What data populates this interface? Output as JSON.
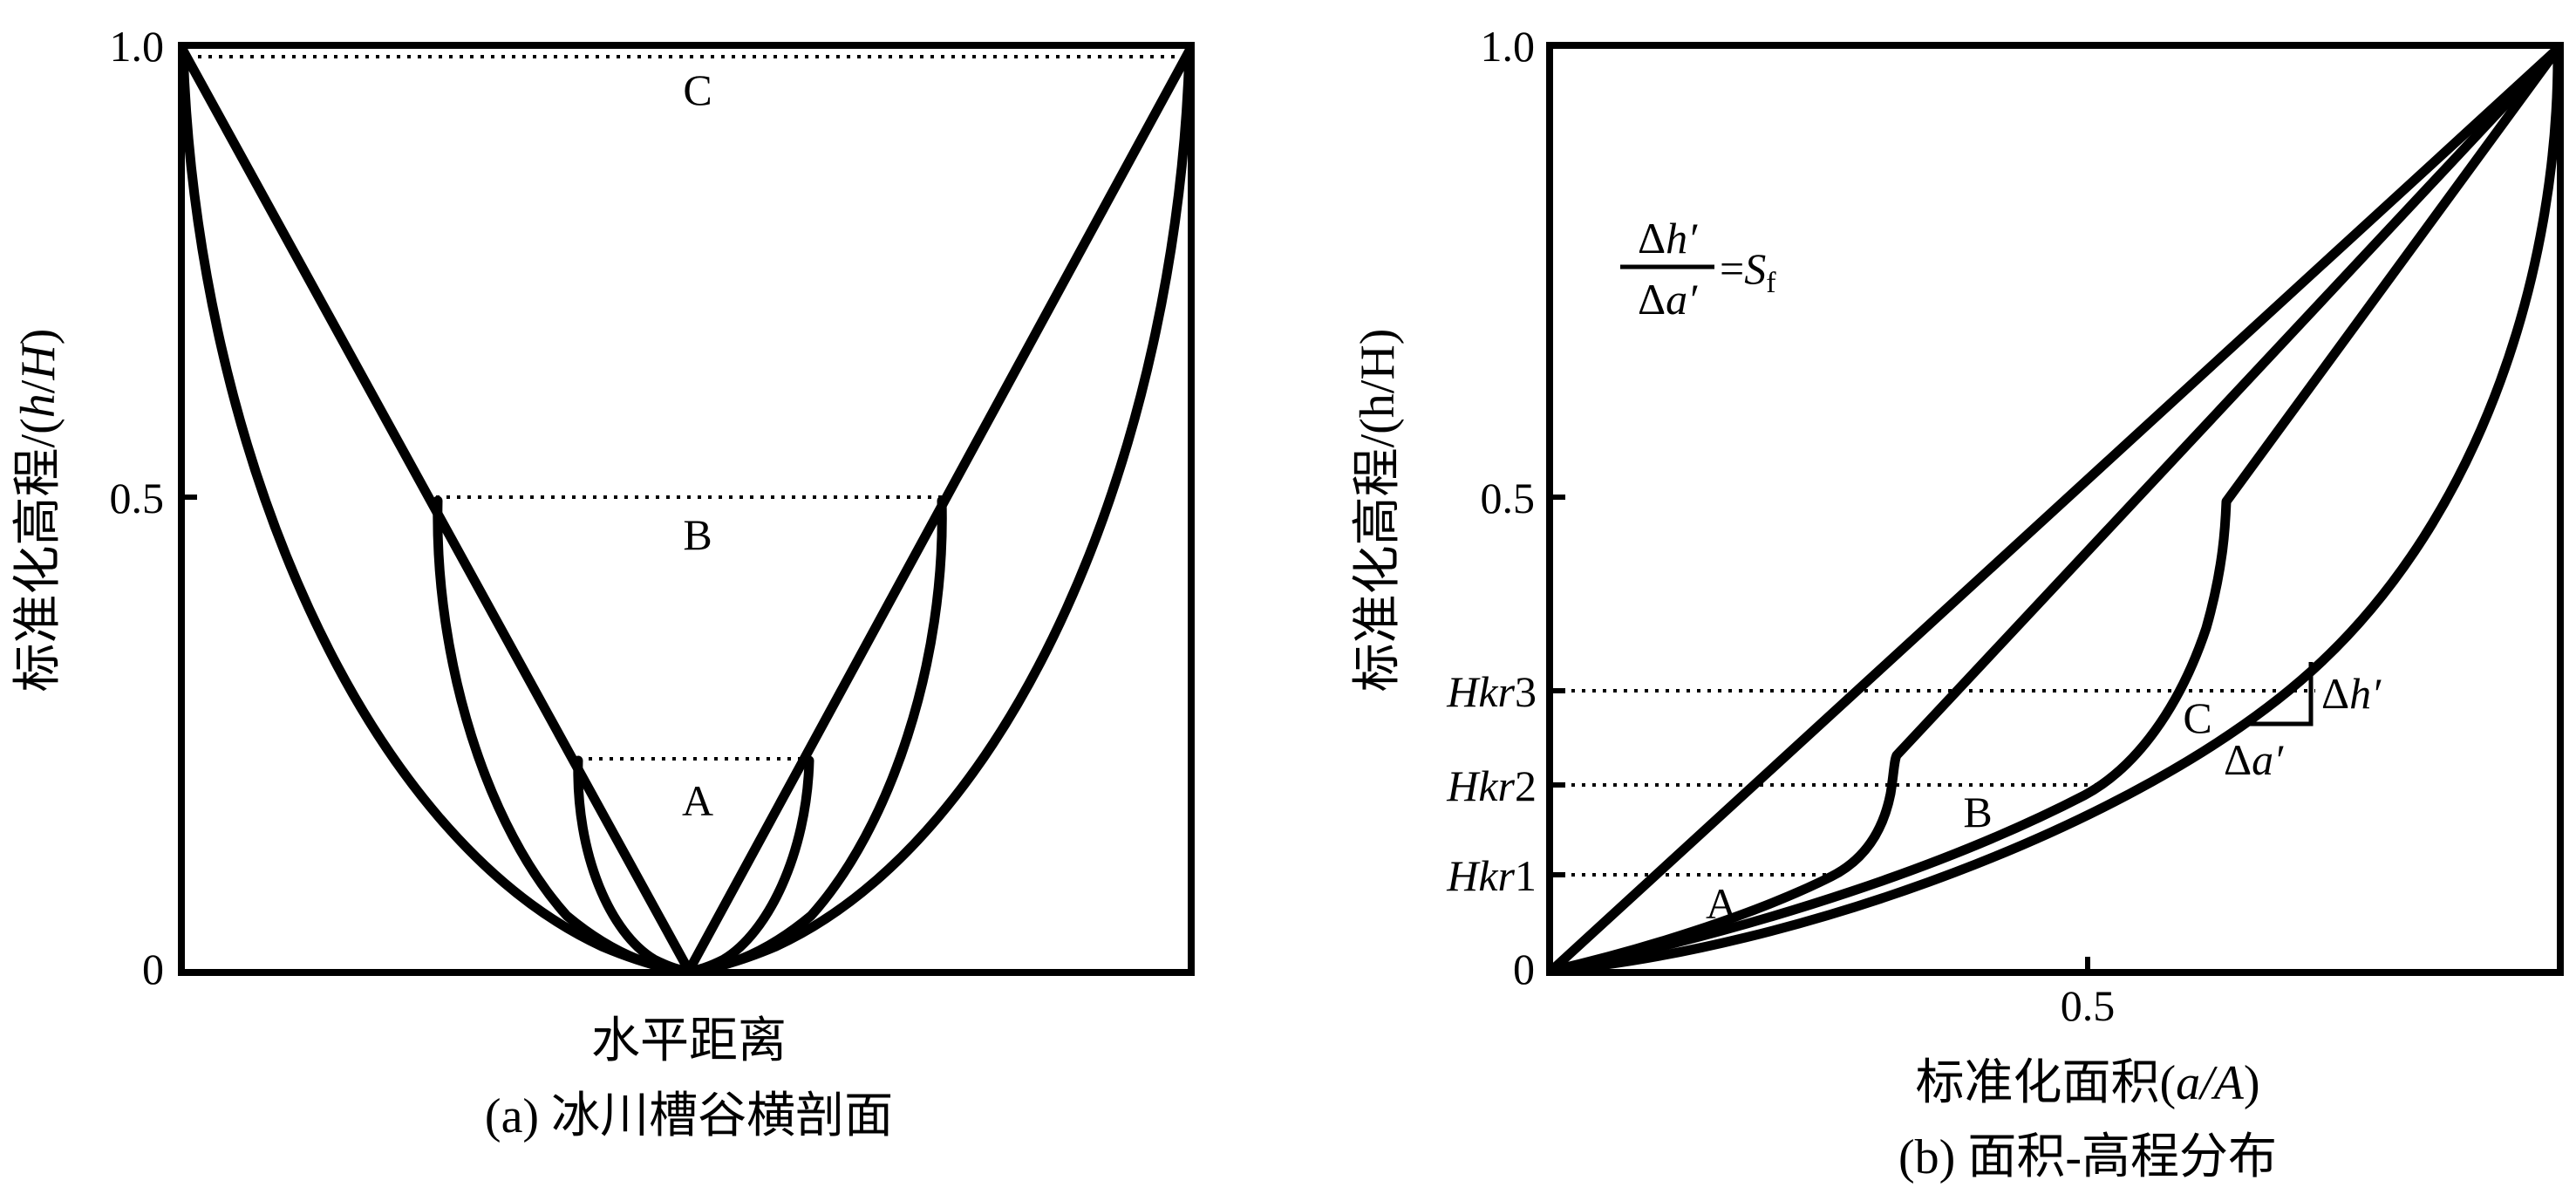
{
  "panel_a": {
    "y_ticks": [
      "1.0",
      "0.5",
      "0"
    ],
    "level_labels": [
      "C",
      "B",
      "A"
    ],
    "xlabel": "水平距离",
    "caption": "(a) 冰川槽谷横剖面",
    "ylabel_prefix": "标准化高程/(",
    "ylabel_var1": "h",
    "ylabel_slash": "/",
    "ylabel_var2": "H",
    "ylabel_suffix": ")"
  },
  "panel_b": {
    "y_ticks": [
      "1.0",
      "0.5",
      "0"
    ],
    "x_tick": "0.5",
    "hkr_labels": [
      {
        "var": "Hkr",
        "num": "3"
      },
      {
        "var": "Hkr",
        "num": "2"
      },
      {
        "var": "Hkr",
        "num": "1"
      }
    ],
    "curve_labels": [
      "C",
      "B",
      "A"
    ],
    "ylabel": "标准化高程/(h/H)",
    "xlabel_prefix": "标准化面积(",
    "xlabel_var": "a/A",
    "xlabel_suffix": ")",
    "caption": "(b) 面积-高程分布",
    "formula": {
      "num_delta": "Δ",
      "num_var": "h′",
      "den_delta": "Δ",
      "den_var": "a′",
      "equals": "=",
      "rhs_var": "S",
      "rhs_sub": "f"
    },
    "dh_label": {
      "delta": "Δ",
      "var": "h′"
    },
    "da_label": {
      "delta": "Δ",
      "var": "a′"
    }
  }
}
